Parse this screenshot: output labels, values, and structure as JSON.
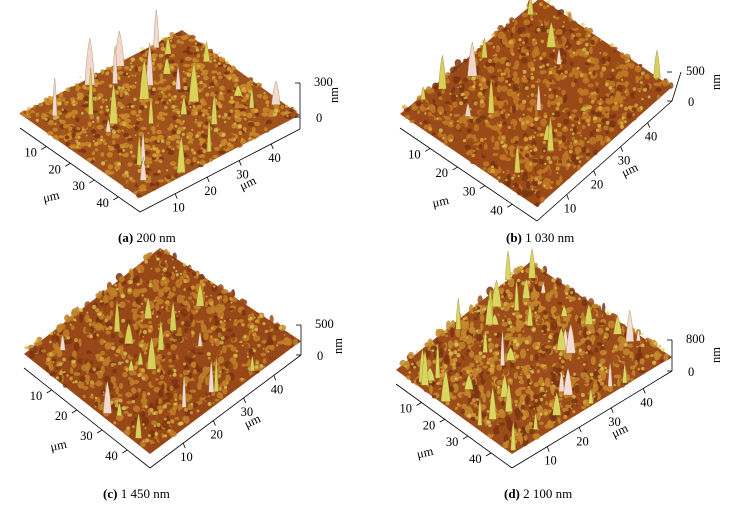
{
  "figure": {
    "axis_unit_lateral": "μm",
    "axis_unit_vertical": "nm",
    "panels": [
      {
        "id": "a",
        "tag": "(a)",
        "caption": "200 nm",
        "xy_ticks": [
          "10",
          "20",
          "30",
          "40"
        ],
        "z_ticks": [
          "0",
          "300"
        ],
        "max_height_nm": 300,
        "surface_colors": {
          "base": "#a0521c",
          "mid": "#c98a2a",
          "peak": "#d9d35a",
          "tip": "#f4d8d0"
        }
      },
      {
        "id": "b",
        "tag": "(b)",
        "caption": "1 030 nm",
        "xy_ticks": [
          "10",
          "20",
          "30",
          "40"
        ],
        "z_ticks": [
          "0",
          "500"
        ],
        "max_height_nm": 500,
        "surface_colors": {
          "base": "#9a4a18",
          "mid": "#c07a24",
          "peak": "#d8cf58",
          "tip": "#f2d6cc"
        }
      },
      {
        "id": "c",
        "tag": "(c)",
        "caption": "1 450 nm",
        "xy_ticks": [
          "10",
          "20",
          "30",
          "40"
        ],
        "z_ticks": [
          "0",
          "500"
        ],
        "max_height_nm": 500,
        "surface_colors": {
          "base": "#984818",
          "mid": "#c08028",
          "peak": "#d6d05a",
          "tip": "#f2d8cf"
        }
      },
      {
        "id": "d",
        "tag": "(d)",
        "caption": "2 100 nm",
        "xy_ticks": [
          "10",
          "20",
          "30",
          "40"
        ],
        "z_ticks": [
          "0",
          "800"
        ],
        "max_height_nm": 800,
        "surface_colors": {
          "base": "#9c4c1a",
          "mid": "#c48a2e",
          "peak": "#dbd660",
          "tip": "#f6dcd2"
        }
      }
    ]
  }
}
